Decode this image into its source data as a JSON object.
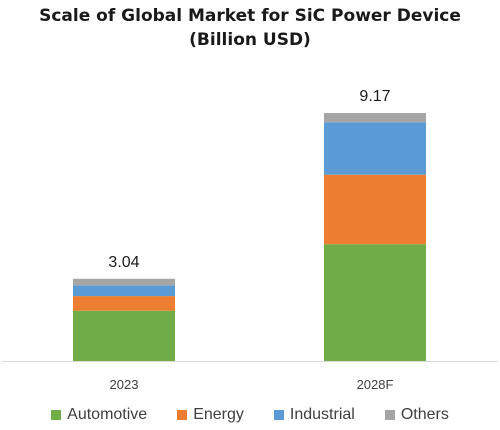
{
  "chart_data": {
    "type": "bar",
    "stacked": true,
    "title": "Scale of Global Market for SiC Power Device",
    "subtitle": "(Billion USD)",
    "categories": [
      "2023",
      "2028F"
    ],
    "series": [
      {
        "name": "Automotive",
        "color": "#70ad47",
        "values": [
          1.86,
          4.32
        ]
      },
      {
        "name": "Energy",
        "color": "#ed7d31",
        "values": [
          0.54,
          2.57
        ]
      },
      {
        "name": "Industrial",
        "color": "#5b9bd5",
        "values": [
          0.4,
          1.94
        ]
      },
      {
        "name": "Others",
        "color": "#a5a5a5",
        "values": [
          0.24,
          0.34
        ]
      }
    ],
    "totals": [
      3.04,
      9.17
    ],
    "total_labels": [
      "3.04",
      "9.17"
    ],
    "ylim": [
      0,
      9.8
    ],
    "grid": false,
    "legend_position": "bottom"
  }
}
